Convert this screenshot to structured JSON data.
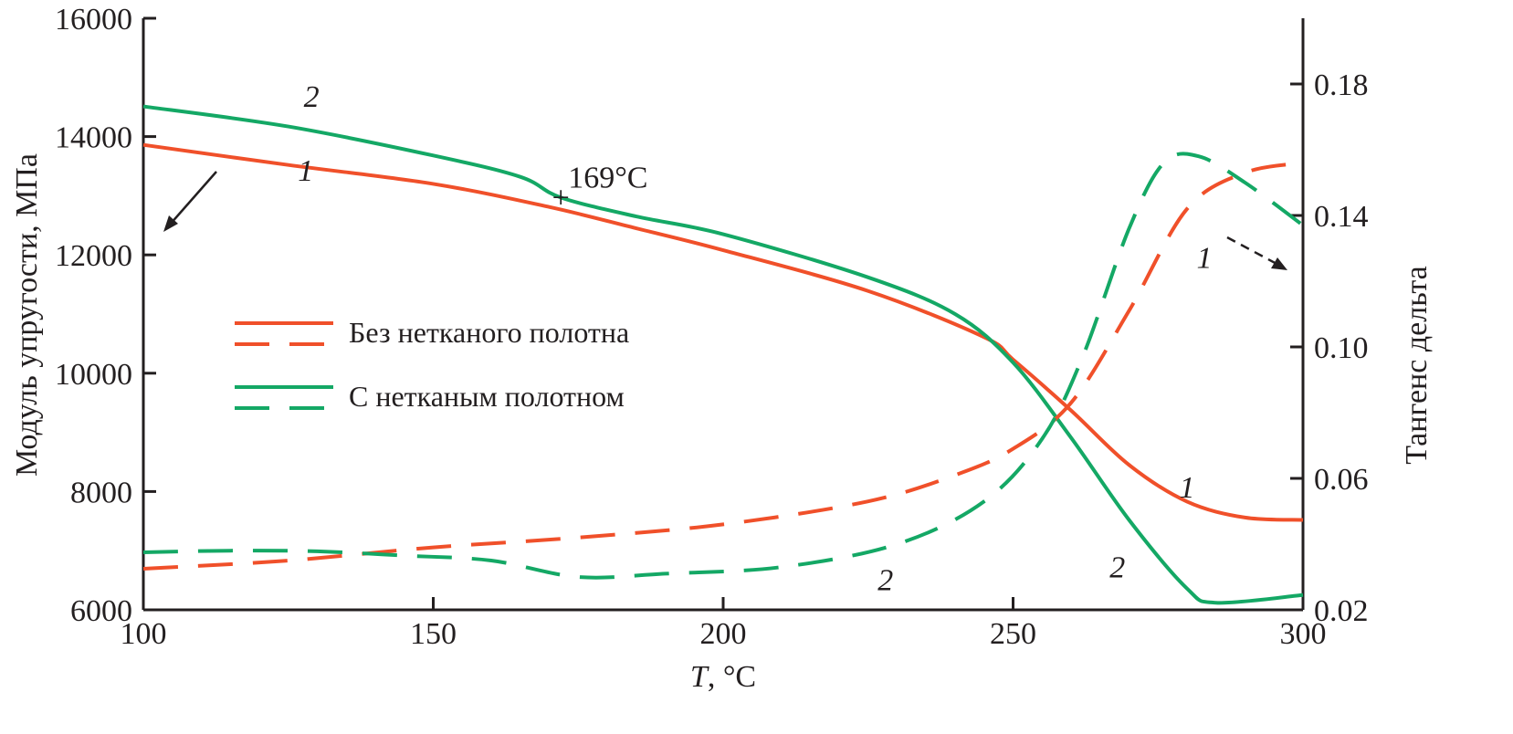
{
  "chart_data": {
    "type": "line",
    "xlabel_italic": "T",
    "xlabel_unit": ", °C",
    "ylabel": "Модуль упругости, МПа",
    "y2label": "Тангенс дельта",
    "xlim": [
      100,
      300
    ],
    "ylim": [
      6000,
      16000
    ],
    "y2lim": [
      0.02,
      0.2
    ],
    "xticks": [
      100,
      150,
      200,
      250,
      300
    ],
    "yticks": [
      6000,
      8000,
      10000,
      12000,
      14000,
      16000
    ],
    "y2ticks": [
      "0.02",
      "0.06",
      "0.10",
      "0.14",
      "0.18"
    ],
    "colors": {
      "without": "#f0502a",
      "with": "#14a865"
    },
    "legend": {
      "placement": "center-left",
      "entries": [
        {
          "label": "Без нетканого полотна",
          "color": "#f0502a"
        },
        {
          "label": "С нетканым полотном",
          "color": "#14a865"
        }
      ]
    },
    "series": [
      {
        "name": "Без нетканого полотна — модуль",
        "axis": "left",
        "style": "solid",
        "color": "#f0502a",
        "x": [
          100,
          125,
          150,
          170,
          185,
          200,
          225,
          245,
          250,
          260,
          270,
          280,
          290,
          300
        ],
        "y": [
          13860,
          13520,
          13200,
          12810,
          12450,
          12080,
          11390,
          10610,
          10230,
          9370,
          8450,
          7830,
          7560,
          7520
        ]
      },
      {
        "name": "С нетканым полотном — модуль",
        "axis": "left",
        "style": "solid",
        "color": "#14a865",
        "x": [
          100,
          125,
          150,
          165,
          172,
          185,
          200,
          225,
          240,
          250,
          260,
          270,
          280,
          285,
          300
        ],
        "y": [
          14510,
          14170,
          13680,
          13320,
          12970,
          12650,
          12350,
          11620,
          11000,
          10180,
          8910,
          7520,
          6360,
          6120,
          6250
        ]
      },
      {
        "name": "Без нетканого полотна — tg δ",
        "axis": "right",
        "style": "dashed",
        "color": "#f0502a",
        "x": [
          100,
          125,
          150,
          175,
          200,
          225,
          240,
          250,
          260,
          270,
          280,
          290,
          300
        ],
        "y": [
          0.0325,
          0.035,
          0.039,
          0.042,
          0.046,
          0.053,
          0.061,
          0.069,
          0.083,
          0.111,
          0.142,
          0.153,
          0.156
        ]
      },
      {
        "name": "С нетканым полотном — tg δ",
        "axis": "right",
        "style": "dashed",
        "color": "#14a865",
        "x": [
          100,
          115,
          130,
          145,
          160,
          175,
          190,
          210,
          230,
          245,
          255,
          262,
          270,
          276,
          282,
          290,
          300
        ],
        "y": [
          0.0375,
          0.038,
          0.0378,
          0.0365,
          0.035,
          0.03,
          0.031,
          0.033,
          0.04,
          0.053,
          0.072,
          0.097,
          0.136,
          0.156,
          0.158,
          0.15,
          0.137
        ]
      }
    ],
    "annotations": [
      {
        "text": "169°C",
        "x": 172,
        "y": 12950,
        "marker": "+"
      }
    ],
    "curve_labels": [
      {
        "text": "2",
        "x": 129,
        "y": 14500,
        "axis": "left"
      },
      {
        "text": "1",
        "x": 128,
        "y": 13250,
        "axis": "left"
      },
      {
        "text": "1",
        "x": 280,
        "y": 7900,
        "axis": "left"
      },
      {
        "text": "2",
        "x": 268,
        "y": 6550,
        "axis": "left"
      },
      {
        "text": "2",
        "x": 228,
        "y": 0.026,
        "axis": "right"
      },
      {
        "text": "1",
        "x": 283,
        "y": 0.124,
        "axis": "right"
      }
    ]
  }
}
